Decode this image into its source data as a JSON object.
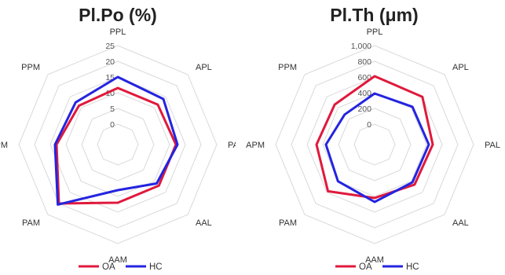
{
  "colors": {
    "OA": "#e0193c",
    "HC": "#2424e0",
    "grid": "#d9d9d9"
  },
  "chart_data": [
    {
      "type": "radar",
      "title": "Pl.Po (%)",
      "axes": [
        "PPL",
        "APL",
        "PAL",
        "AAL",
        "AAM",
        "PAM",
        "APM",
        "PPM"
      ],
      "ticks": [
        "0",
        "5",
        "10",
        "15",
        "20",
        "25"
      ],
      "rlim": [
        0,
        25
      ],
      "grid": true,
      "legend": "bottom",
      "series": [
        {
          "name": "OA",
          "values": [
            11.5,
            11.5,
            12,
            12,
            12,
            20,
            13,
            11
          ]
        },
        {
          "name": "HC",
          "values": [
            15,
            14,
            12.5,
            11,
            8,
            20.5,
            13.5,
            12.5
          ]
        }
      ]
    },
    {
      "type": "radar",
      "title": "Pl.Th (μm)",
      "axes": [
        "PPL",
        "APL",
        "PAL",
        "AAL",
        "AAM",
        "PAM",
        "APM",
        "PPM"
      ],
      "ticks": [
        "0",
        "200",
        "400",
        "600",
        "800",
        "1,000"
      ],
      "rlim": [
        0,
        1000
      ],
      "grid": true,
      "legend": "bottom",
      "series": [
        {
          "name": "OA",
          "values": [
            610,
            600,
            480,
            460,
            420,
            580,
            480,
            460
          ]
        },
        {
          "name": "HC",
          "values": [
            390,
            420,
            430,
            420,
            470,
            400,
            360,
            280
          ]
        }
      ]
    }
  ]
}
